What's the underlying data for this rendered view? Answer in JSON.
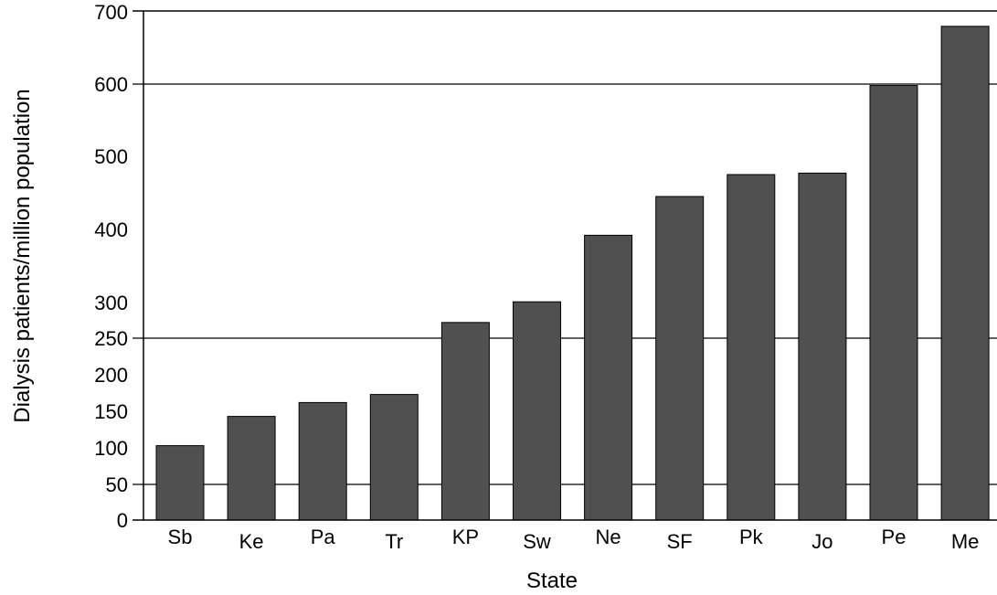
{
  "chart_data": {
    "type": "bar",
    "title": "",
    "xlabel": "State",
    "ylabel": "Dialysis patients/million population",
    "categories": [
      "Sb",
      "Ke",
      "Pa",
      "Tr",
      "KP",
      "Sw",
      "Ne",
      "SF",
      "Pk",
      "Jo",
      "Pe",
      "Me"
    ],
    "values": [
      103,
      143,
      162,
      173,
      272,
      301,
      392,
      445,
      475,
      477,
      598,
      680
    ],
    "ylim": [
      0,
      700
    ],
    "yticks": [
      "0",
      "50",
      "100",
      "150",
      "200",
      "250",
      "300",
      "400",
      "500",
      "600",
      "700"
    ],
    "gridlines_at": [
      50,
      250,
      600
    ],
    "grid": true,
    "bar_color": "#505050"
  }
}
